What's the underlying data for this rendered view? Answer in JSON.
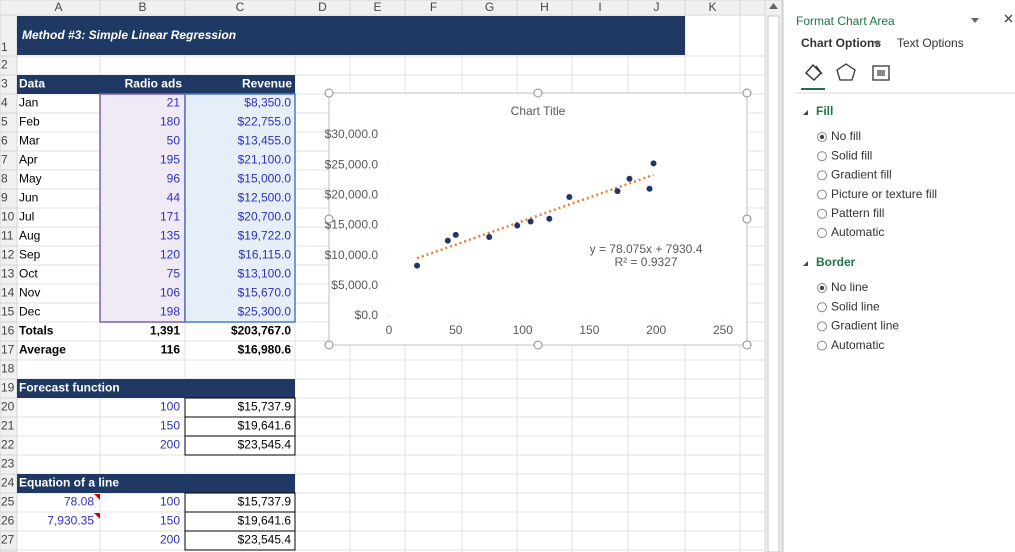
{
  "column_headers": [
    "A",
    "B",
    "C",
    "D",
    "E",
    "F",
    "G",
    "H",
    "I",
    "J",
    "K"
  ],
  "row_numbers": [
    1,
    2,
    3,
    4,
    5,
    6,
    7,
    8,
    9,
    10,
    11,
    12,
    13,
    14,
    15,
    16,
    17,
    18,
    19,
    20,
    21,
    22,
    23,
    24,
    25,
    26,
    27
  ],
  "sheet": {
    "title": "Method #3: Simple Linear Regression",
    "data_table": {
      "headers": [
        "Data",
        "Radio ads",
        "Revenue"
      ],
      "rows": [
        [
          "Jan",
          "21",
          "$8,350.0"
        ],
        [
          "Feb",
          "180",
          "$22,755.0"
        ],
        [
          "Mar",
          "50",
          "$13,455.0"
        ],
        [
          "Apr",
          "195",
          "$21,100.0"
        ],
        [
          "May",
          "96",
          "$15,000.0"
        ],
        [
          "Jun",
          "44",
          "$12,500.0"
        ],
        [
          "Jul",
          "171",
          "$20,700.0"
        ],
        [
          "Aug",
          "135",
          "$19,722.0"
        ],
        [
          "Sep",
          "120",
          "$16,115.0"
        ],
        [
          "Oct",
          "75",
          "$13,100.0"
        ],
        [
          "Nov",
          "106",
          "$15,670.0"
        ],
        [
          "Dec",
          "198",
          "$25,300.0"
        ]
      ],
      "totals": [
        "Totals",
        "1,391",
        "$203,767.0"
      ],
      "average": [
        "Average",
        "116",
        "$16,980.6"
      ]
    },
    "forecast": {
      "title": "Forecast function",
      "rows": [
        [
          "100",
          "$15,737.9"
        ],
        [
          "150",
          "$19,641.6"
        ],
        [
          "200",
          "$23,545.4"
        ]
      ]
    },
    "equation": {
      "title": "Equation of a line",
      "slope": "78.08",
      "intercept": "7,930.35",
      "rows": [
        [
          "100",
          "$15,737.9"
        ],
        [
          "150",
          "$19,641.6"
        ],
        [
          "200",
          "$23,545.4"
        ]
      ]
    }
  },
  "chart_data": {
    "type": "scatter",
    "title": "Chart Title",
    "x": [
      21,
      180,
      50,
      195,
      96,
      44,
      171,
      135,
      120,
      75,
      106,
      198
    ],
    "values": [
      8350,
      22755,
      13455,
      21100,
      15000,
      12500,
      20700,
      19722,
      16115,
      13100,
      15670,
      25300
    ],
    "color": "#1f3864",
    "xlim": [
      0,
      250
    ],
    "xticks": [
      0,
      50,
      100,
      150,
      200,
      250
    ],
    "ylim": [
      0,
      30000
    ],
    "yticks": [
      {
        "value": 0,
        "label": "$0.0"
      },
      {
        "value": 5000,
        "label": "$5,000.0"
      },
      {
        "value": 10000,
        "label": "$10,000.0"
      },
      {
        "value": 15000,
        "label": "$15,000.0"
      },
      {
        "value": 20000,
        "label": "$20,000.0"
      },
      {
        "value": 25000,
        "label": "$25,000.0"
      },
      {
        "value": 30000,
        "label": "$30,000.0"
      }
    ],
    "grid": false,
    "trendline": {
      "slope": 78.075,
      "intercept": 7930.4,
      "color": "#ed7d31",
      "equation": "y = 78.075x + 7930.4",
      "r_squared": "R² = 0.9327"
    }
  },
  "pane": {
    "title": "Format Chart Area",
    "tabs": [
      "Chart Options",
      "Text Options"
    ],
    "sections": [
      {
        "title": "Fill",
        "options": [
          "No fill",
          "Solid fill",
          "Gradient fill",
          "Picture or texture fill",
          "Pattern fill",
          "Automatic"
        ],
        "selected": 0
      },
      {
        "title": "Border",
        "options": [
          "No line",
          "Solid line",
          "Gradient line",
          "Automatic"
        ],
        "selected": 0
      }
    ]
  }
}
